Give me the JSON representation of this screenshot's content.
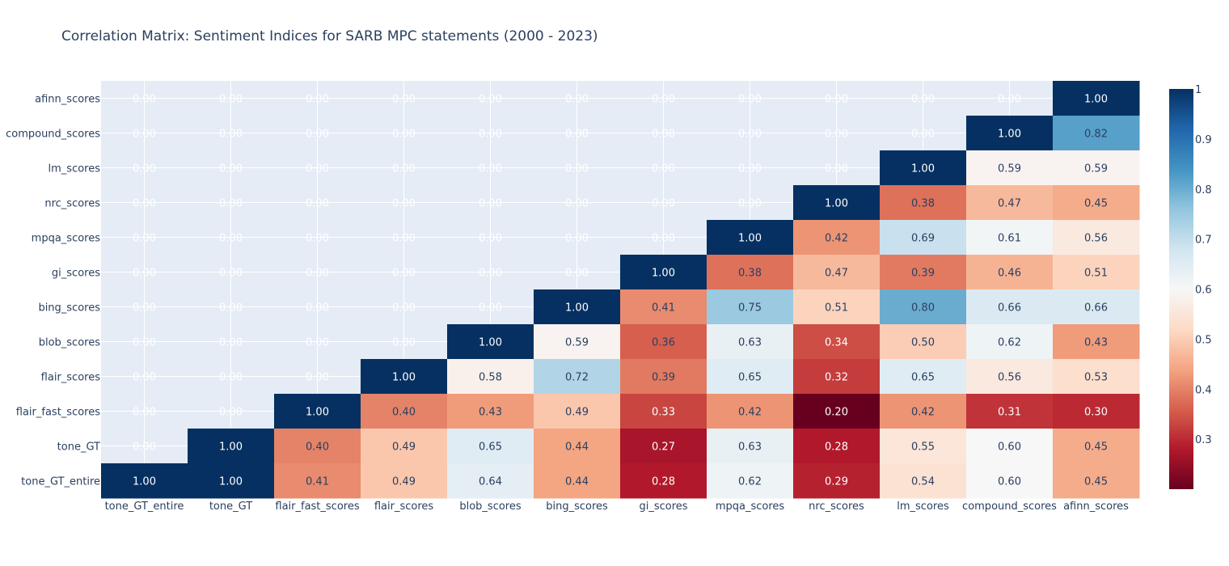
{
  "chart_data": {
    "type": "heatmap",
    "title": "Correlation Matrix: Sentiment Indices for SARB MPC statements (2000 - 2023)",
    "x_labels": [
      "tone_GT_entire",
      "tone_GT",
      "flair_fast_scores",
      "flair_scores",
      "blob_scores",
      "bing_scores",
      "gi_scores",
      "mpqa_scores",
      "nrc_scores",
      "lm_scores",
      "compound_scores",
      "afinn_scores"
    ],
    "y_labels": [
      "afinn_scores",
      "compound_scores",
      "lm_scores",
      "nrc_scores",
      "mpqa_scores",
      "gi_scores",
      "bing_scores",
      "blob_scores",
      "flair_scores",
      "flair_fast_scores",
      "tone_GT",
      "tone_GT_entire"
    ],
    "z": [
      [
        0,
        0,
        0,
        0,
        0,
        0,
        0,
        0,
        0,
        0,
        0,
        1.0
      ],
      [
        0,
        0,
        0,
        0,
        0,
        0,
        0,
        0,
        0,
        0,
        1.0,
        0.82
      ],
      [
        0,
        0,
        0,
        0,
        0,
        0,
        0,
        0,
        0,
        1.0,
        0.59,
        0.59
      ],
      [
        0,
        0,
        0,
        0,
        0,
        0,
        0,
        0,
        1.0,
        0.38,
        0.47,
        0.45
      ],
      [
        0,
        0,
        0,
        0,
        0,
        0,
        0,
        1.0,
        0.42,
        0.69,
        0.61,
        0.56
      ],
      [
        0,
        0,
        0,
        0,
        0,
        0,
        1.0,
        0.38,
        0.47,
        0.39,
        0.46,
        0.51
      ],
      [
        0,
        0,
        0,
        0,
        0,
        1.0,
        0.41,
        0.75,
        0.51,
        0.8,
        0.66,
        0.66
      ],
      [
        0,
        0,
        0,
        0,
        1.0,
        0.59,
        0.36,
        0.63,
        0.34,
        0.5,
        0.62,
        0.43
      ],
      [
        0,
        0,
        0,
        1.0,
        0.58,
        0.72,
        0.39,
        0.65,
        0.32,
        0.65,
        0.56,
        0.53
      ],
      [
        0,
        0,
        1.0,
        0.4,
        0.43,
        0.49,
        0.33,
        0.42,
        0.2,
        0.42,
        0.31,
        0.3
      ],
      [
        0,
        1.0,
        0.4,
        0.49,
        0.65,
        0.44,
        0.27,
        0.63,
        0.28,
        0.55,
        0.6,
        0.45
      ],
      [
        1.0,
        1.0,
        0.41,
        0.49,
        0.64,
        0.44,
        0.28,
        0.62,
        0.29,
        0.54,
        0.6,
        0.45
      ]
    ],
    "masked_text": "0.00",
    "zmin": 0.2,
    "zmax": 1.0,
    "colorscale": "RdBu",
    "colorbar_ticks": [
      0.3,
      0.4,
      0.5,
      0.6,
      0.7,
      0.8,
      0.9,
      1
    ],
    "grid": true,
    "colors": {
      "plot_background": "#E5ECF6",
      "grid": "#ffffff",
      "text": "#2a3f5f",
      "title": "#2a3f5f"
    }
  }
}
